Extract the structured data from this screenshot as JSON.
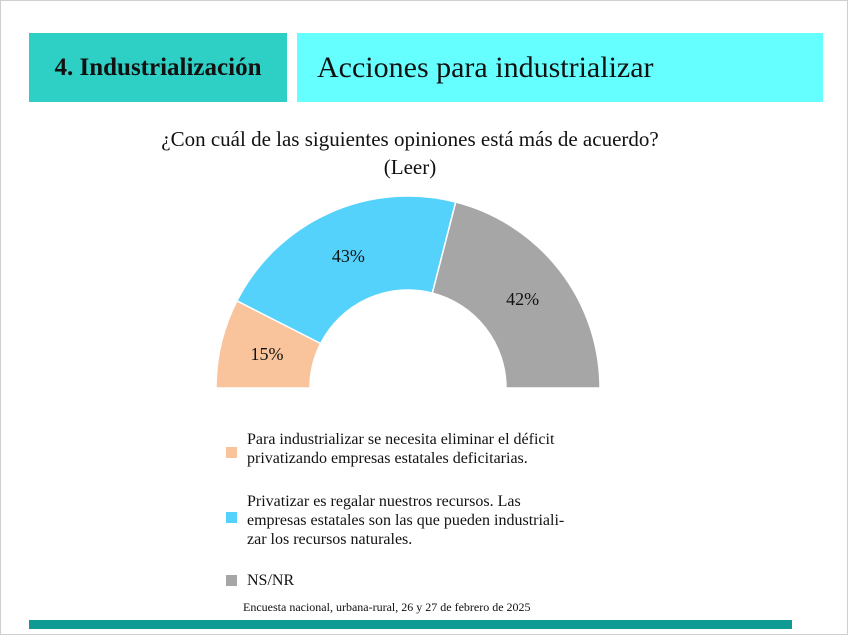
{
  "header": {
    "section": "4. Industrialización",
    "title": "Acciones para industrializar"
  },
  "question": "¿Con cuál de las siguientes opiniones está más de acuerdo? (Leer)",
  "footnote": "Encuesta nacional, urbana-rural, 26 y 27 de febrero de 2025",
  "chart_data": {
    "type": "pie",
    "subtype": "semi-donut",
    "title": "",
    "slices": [
      {
        "label": "Para industrializar se necesita eliminar el déficit privatizando empresas estatales deficitarias.",
        "value": 15,
        "display": "15%",
        "color": "#f9c49b"
      },
      {
        "label": "Privatizar es regalar nuestros recursos. Las empresas estatales son las que pueden industriali-zar los recursos naturales.",
        "value": 43,
        "display": "43%",
        "color": "#55d2fb"
      },
      {
        "label": "NS/NR",
        "value": 42,
        "display": "42%",
        "color": "#a6a6a6"
      }
    ],
    "legend_position": "bottom"
  },
  "legend_lines": [
    [
      "Para industrializar se necesita eliminar el déficit",
      "privatizando empresas estatales deficitarias."
    ],
    [
      "Privatizar es regalar nuestros recursos. Las",
      "empresas estatales son las que pueden industriali-",
      "zar los recursos naturales."
    ],
    [
      "NS/NR"
    ]
  ],
  "colors": {
    "section_bg": "#2ecfc4",
    "title_bg": "#66ffff",
    "bottom_bar": "#0f9a93"
  }
}
